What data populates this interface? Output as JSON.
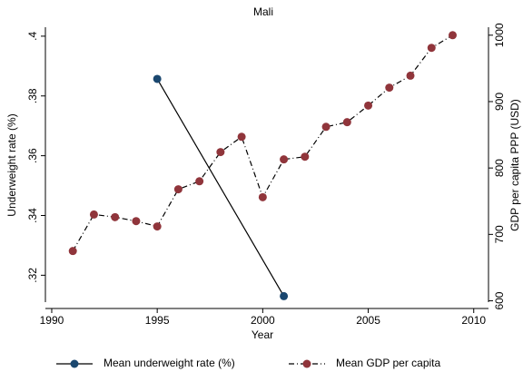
{
  "chart_data": {
    "type": "line",
    "title": "Mali",
    "x_label": "Year",
    "y_label": "Underweight rate (%)",
    "y2_label": "GDP per capita PPP (USD)",
    "xlim": [
      1989.7,
      2010.7
    ],
    "xticks": [
      1990,
      1995,
      2000,
      2005,
      2010
    ],
    "ylim": [
      0.311,
      0.403
    ],
    "yticks": [
      {
        "value": 0.32,
        "label": ".32"
      },
      {
        "value": 0.34,
        "label": ".34"
      },
      {
        "value": 0.36,
        "label": ".36"
      },
      {
        "value": 0.38,
        "label": ".38"
      },
      {
        "value": 0.4,
        "label": ".4"
      }
    ],
    "y2lim": [
      598,
      1012
    ],
    "y2ticks": [
      600,
      700,
      800,
      900,
      1000
    ],
    "grid": false,
    "legend": "bottom",
    "series": [
      {
        "name": "Mean underweight rate (%)",
        "color": "#1a476f",
        "line_style": "solid",
        "x": [
          1995,
          2001
        ],
        "values": [
          0.3857,
          0.313
        ]
      },
      {
        "name": "Mean GDP per capita",
        "color": "#90353b",
        "line_style": "dashdot",
        "axis": "y2",
        "x": [
          1991,
          1992,
          1993,
          1994,
          1995,
          1996,
          1997,
          1998,
          1999,
          2000,
          2001,
          2002,
          2003,
          2004,
          2005,
          2006,
          2007,
          2008,
          2009
        ],
        "values": [
          675,
          730,
          726,
          720,
          712,
          768,
          780,
          824,
          847,
          756,
          813,
          817,
          862,
          869,
          894,
          921,
          939,
          981,
          1000
        ]
      }
    ]
  }
}
